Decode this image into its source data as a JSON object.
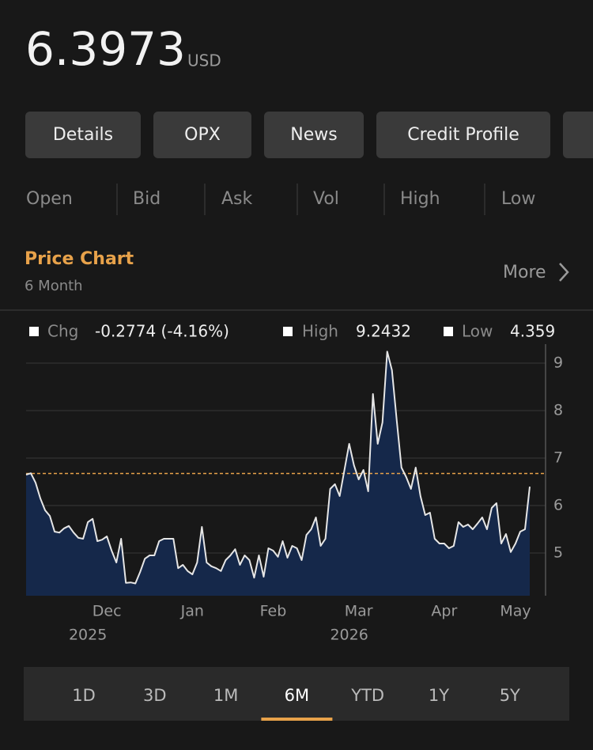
{
  "quote": {
    "price": "6.3973",
    "currency": "USD"
  },
  "tabs": [
    "Details",
    "OPX",
    "News",
    "Credit Profile"
  ],
  "stats": [
    "Open",
    "Bid",
    "Ask",
    "Vol",
    "High",
    "Low"
  ],
  "section": {
    "title": "Price Chart",
    "subtitle": "6 Month",
    "more": "More"
  },
  "chart_data": {
    "type": "line",
    "legend": [
      {
        "label": "Chg",
        "text": "-0.2774 (-4.16%)"
      },
      {
        "label": "High",
        "value": 9.2432
      },
      {
        "label": "Low",
        "value": 4.359
      }
    ],
    "values": [
      6.65,
      6.68,
      6.48,
      6.15,
      5.9,
      5.78,
      5.45,
      5.43,
      5.52,
      5.57,
      5.43,
      5.32,
      5.3,
      5.65,
      5.72,
      5.25,
      5.28,
      5.35,
      5.05,
      4.8,
      5.3,
      4.37,
      4.38,
      4.359,
      4.6,
      4.88,
      4.95,
      4.95,
      5.25,
      5.3,
      5.3,
      5.3,
      4.68,
      4.75,
      4.62,
      4.55,
      4.8,
      5.55,
      4.8,
      4.72,
      4.68,
      4.62,
      4.85,
      4.95,
      5.08,
      4.75,
      4.95,
      4.85,
      4.48,
      4.95,
      4.5,
      5.1,
      5.05,
      4.92,
      5.25,
      4.9,
      5.15,
      5.1,
      4.85,
      5.38,
      5.5,
      5.75,
      5.15,
      5.3,
      6.35,
      6.45,
      6.2,
      6.75,
      7.3,
      6.85,
      6.55,
      6.75,
      6.3,
      8.35,
      7.3,
      7.75,
      9.2432,
      8.85,
      7.8,
      6.8,
      6.6,
      6.35,
      6.8,
      6.2,
      5.8,
      5.85,
      5.3,
      5.2,
      5.2,
      5.1,
      5.15,
      5.65,
      5.55,
      5.6,
      5.5,
      5.62,
      5.75,
      5.5,
      5.95,
      6.05,
      5.2,
      5.4,
      5.02,
      5.2,
      5.45,
      5.5,
      6.3973
    ],
    "color": "#e6e6e6",
    "area_color": "#15284a",
    "reference_line": 6.6747,
    "reference_color": "#e8a24a",
    "ylim": [
      4.1,
      9.4
    ],
    "yticks": [
      5,
      6,
      7,
      8,
      9
    ],
    "grid": true,
    "xticks": [
      {
        "value": 17,
        "label": "Dec"
      },
      {
        "value": 35,
        "label": "Jan"
      },
      {
        "value": 52,
        "label": "Feb"
      },
      {
        "value": 70,
        "label": "Mar"
      },
      {
        "value": 88,
        "label": "Apr"
      },
      {
        "value": 103,
        "label": "May"
      }
    ],
    "year_labels": [
      {
        "value": 13,
        "label": "2025"
      },
      {
        "value": 68,
        "label": "2026"
      }
    ]
  },
  "ranges": [
    "1D",
    "3D",
    "1M",
    "6M",
    "YTD",
    "1Y",
    "5Y"
  ],
  "selected_range": 3
}
